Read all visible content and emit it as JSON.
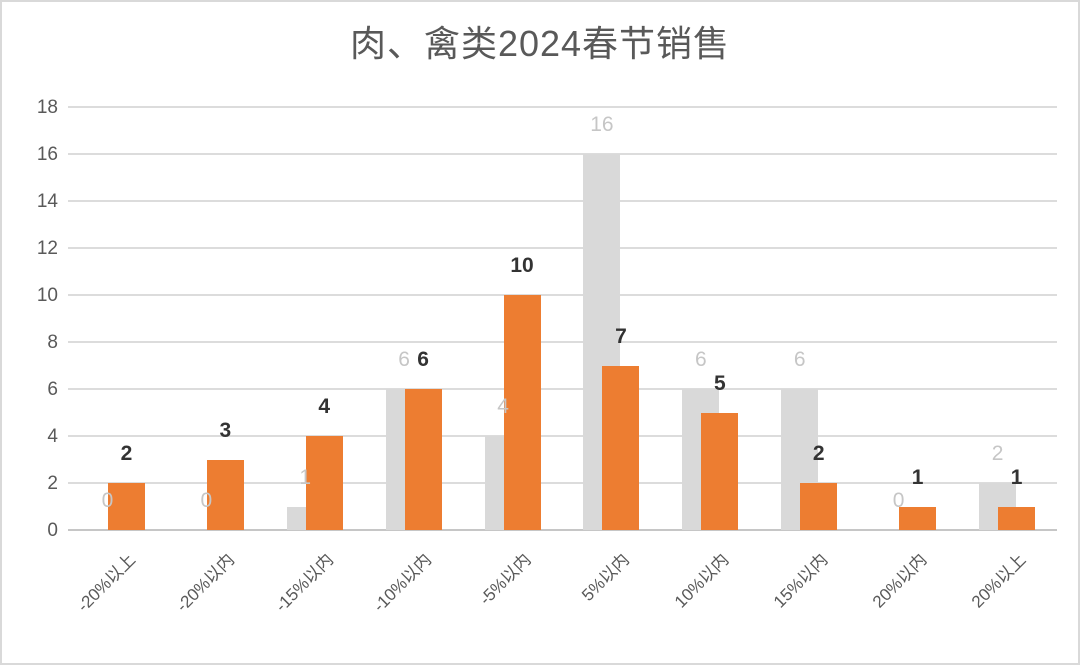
{
  "chart_data": {
    "type": "bar",
    "title": "肉、禽类2024春节销售",
    "categories": [
      "-20%以上",
      "-20%以内",
      "-15%以内",
      "-10%以内",
      "-5%以内",
      "5%以内",
      "10%以内",
      "15%以内",
      "20%以内",
      "20%以上"
    ],
    "series": [
      {
        "name": "gray",
        "color": "#D9D9D9",
        "label_color": "#C6C6C6",
        "values": [
          0,
          0,
          1,
          6,
          4,
          16,
          6,
          6,
          0,
          2
        ]
      },
      {
        "name": "orange",
        "color": "#ED7D31",
        "label_color": "#333333",
        "values": [
          2,
          3,
          4,
          6,
          10,
          7,
          5,
          2,
          1,
          1
        ]
      }
    ],
    "xlabel": "",
    "ylabel": "",
    "ylim": [
      0,
      18
    ],
    "y_ticks": [
      "0",
      "2",
      "4",
      "6",
      "8",
      "10",
      "12",
      "14",
      "16",
      "18"
    ],
    "grid": "horizontal",
    "legend_position": "none",
    "data_labels": "outside-end",
    "bar_style": "overlapped"
  },
  "colors": {
    "title_text": "#595959",
    "axis_text": "#595959",
    "gridline": "#DCDCDC",
    "baseline": "#C6C6C6",
    "chart_border": "#D9D9D9",
    "background": "#FFFFFF"
  }
}
